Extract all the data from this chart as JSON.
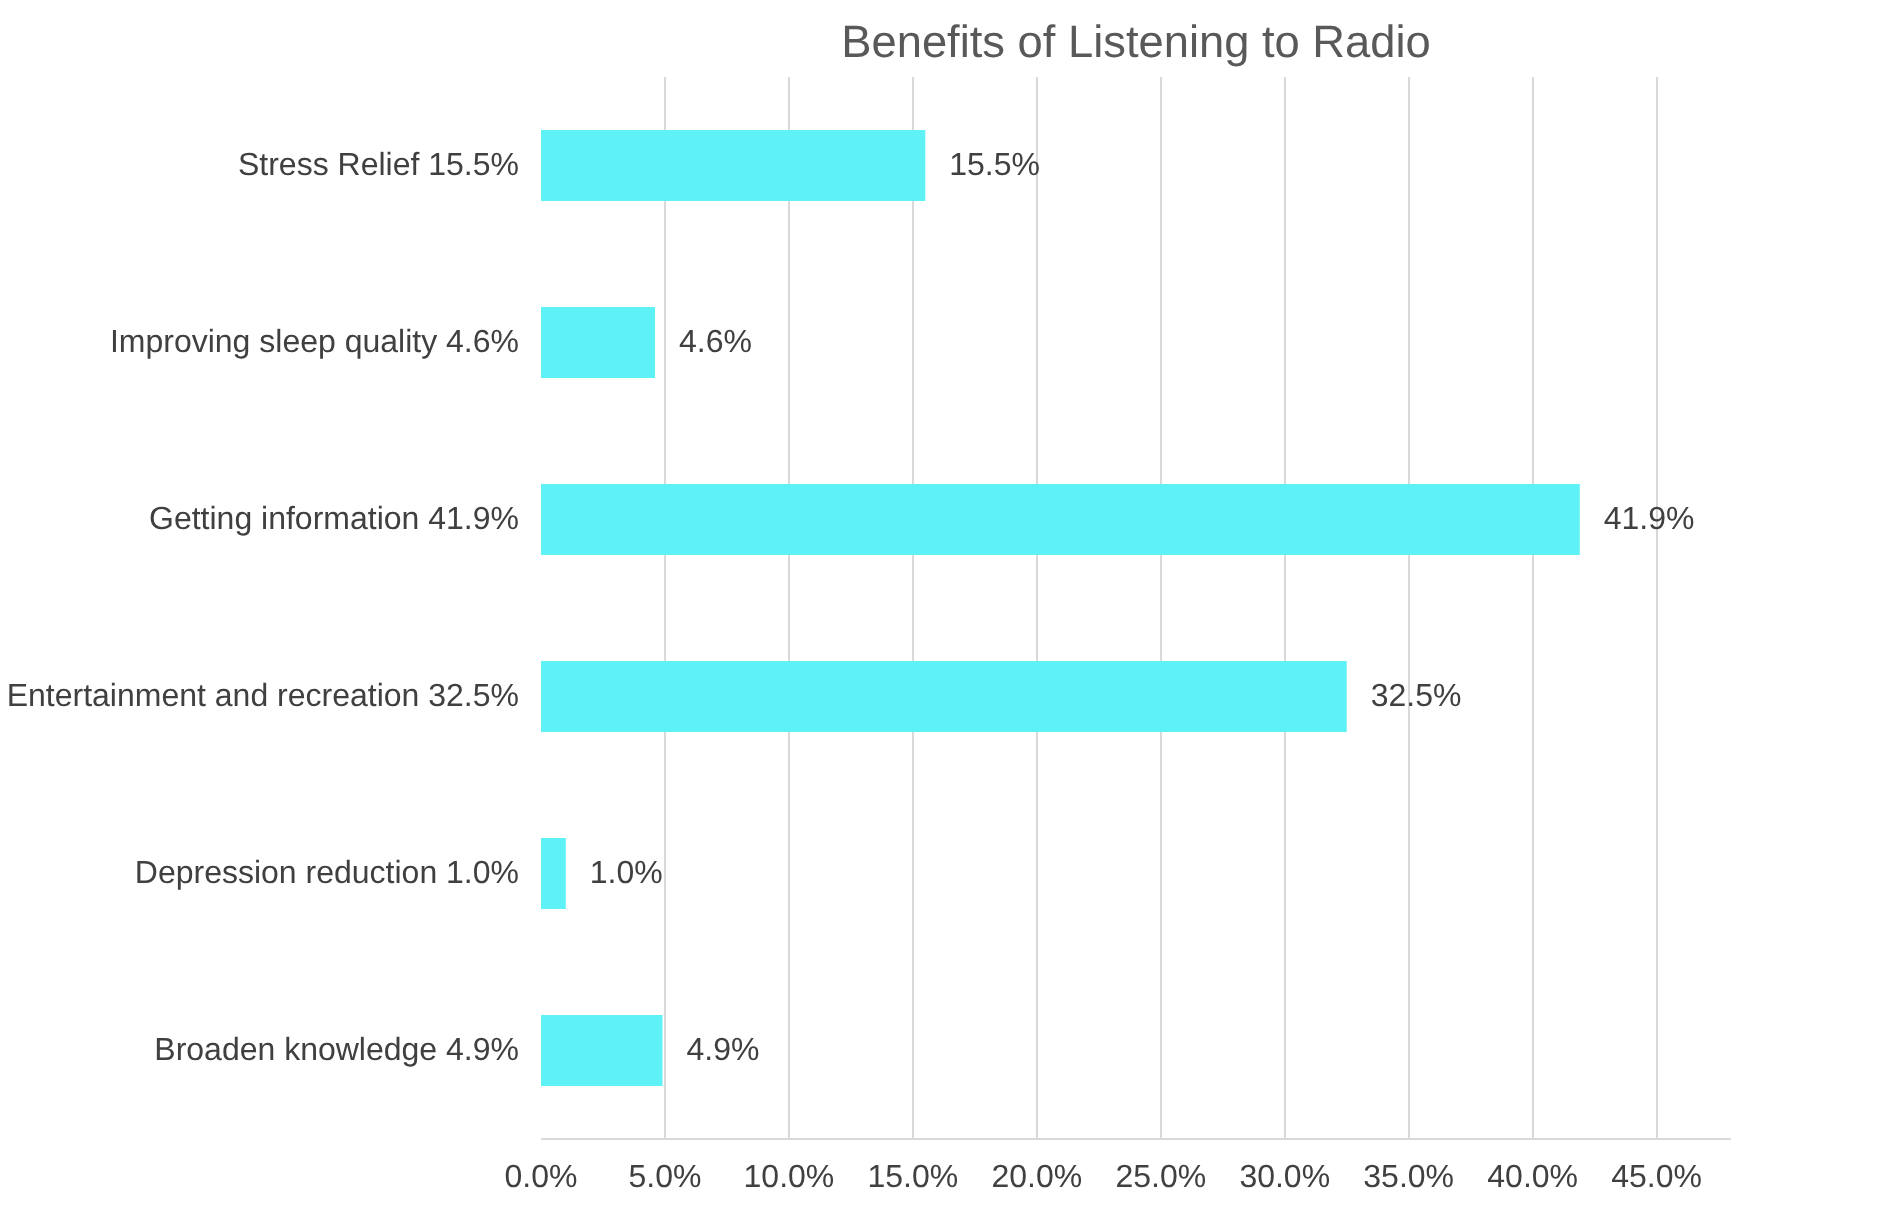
{
  "chart_data": {
    "type": "bar",
    "orientation": "horizontal",
    "title": "Benefits of Listening to Radio",
    "categories": [
      "Stress Relief 15.5%",
      "Improving sleep quality 4.6%",
      "Getting information 41.9%",
      "Entertainment and recreation 32.5%",
      "Depression reduction 1.0%",
      "Broaden knowledge 4.9%"
    ],
    "values": [
      15.5,
      4.6,
      41.9,
      32.5,
      1.0,
      4.9
    ],
    "value_labels": [
      "15.5%",
      "4.6%",
      "41.9%",
      "32.5%",
      "1.0%",
      "4.9%"
    ],
    "color": "#5ef1f6",
    "xlim": [
      0,
      48
    ],
    "xticks": [
      {
        "value": 0,
        "label": "0.0%"
      },
      {
        "value": 5,
        "label": "5.0%"
      },
      {
        "value": 10,
        "label": "10.0%"
      },
      {
        "value": 15,
        "label": "15.0%"
      },
      {
        "value": 20,
        "label": "20.0%"
      },
      {
        "value": 25,
        "label": "25.0%"
      },
      {
        "value": 30,
        "label": "30.0%"
      },
      {
        "value": 35,
        "label": "35.0%"
      },
      {
        "value": 40,
        "label": "40.0%"
      },
      {
        "value": 45,
        "label": "45.0%"
      }
    ],
    "grid": "x"
  }
}
